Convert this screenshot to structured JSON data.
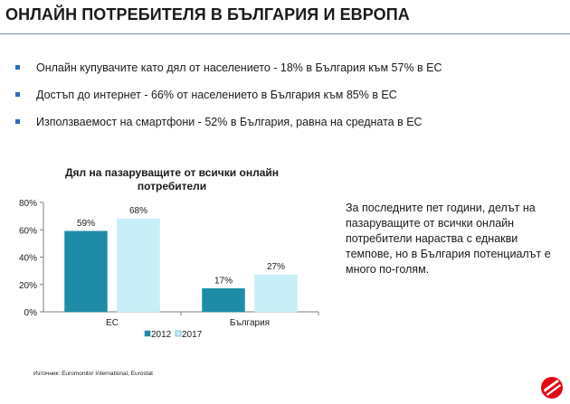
{
  "title": "ОНЛАЙН ПОТРЕБИТЕЛЯ В БЪЛГАРИЯ И ЕВРОПА",
  "bullets": [
    "Онлайн купувачите като дял от населението - 18% в България към 57% в ЕС",
    "Достъп до интернет - 66% от населението в България към 85% в ЕС",
    "Използваемост на смартфони - 52% в България, равна на средната в ЕС"
  ],
  "side_text": "За последните пет години, делът на пазаруващите от всички онлайн потребители нараства с еднакви темпове, но в България потенциалът е много по-голям.",
  "source": "Източник: Euromonitor International, Eurostat",
  "colors": {
    "accent": "#2a6fb8",
    "logo_red": "#e30613"
  },
  "chart_data": {
    "type": "bar",
    "title": "Дял на пазаруващите от всички онлайн потребители",
    "categories": [
      "ЕС",
      "България"
    ],
    "series": [
      {
        "name": "2012",
        "values": [
          59,
          17
        ],
        "color": "#1e8ca6"
      },
      {
        "name": "2017",
        "values": [
          68,
          27
        ],
        "color": "#c8eef7"
      }
    ],
    "value_labels": [
      [
        "59%",
        "17%"
      ],
      [
        "68%",
        "27%"
      ]
    ],
    "yticks": [
      "0%",
      "20%",
      "40%",
      "60%",
      "80%"
    ],
    "ylim": [
      0,
      80
    ],
    "grid": false,
    "legend": "bottom"
  }
}
